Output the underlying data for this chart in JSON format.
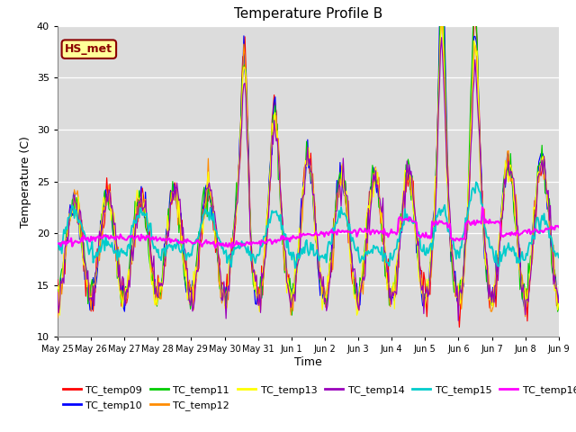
{
  "title": "Temperature Profile B",
  "xlabel": "Time",
  "ylabel": "Temperature (C)",
  "ylim": [
    10,
    40
  ],
  "annotation_text": "HS_met",
  "annotation_color": "#8B0000",
  "annotation_bg": "#FFFF99",
  "bg_color": "#DCDCDC",
  "series_colors": {
    "TC_temp09": "#FF0000",
    "TC_temp10": "#0000FF",
    "TC_temp11": "#00CC00",
    "TC_temp12": "#FF8C00",
    "TC_temp13": "#FFFF00",
    "TC_temp14": "#9900BB",
    "TC_temp15": "#00CCCC",
    "TC_temp16": "#FF00FF"
  },
  "xtick_labels": [
    "May 25",
    "May 26",
    "May 27",
    "May 28",
    "May 29",
    "May 30",
    "May 31",
    "Jun 1",
    "Jun 2",
    "Jun 3",
    "Jun 4",
    "Jun 5",
    "Jun 6",
    "Jun 7",
    "Jun 8",
    "Jun 9"
  ],
  "ytick_labels": [
    "10",
    "15",
    "20",
    "25",
    "30",
    "35",
    "40"
  ],
  "n_points": 480,
  "total_days": 15
}
